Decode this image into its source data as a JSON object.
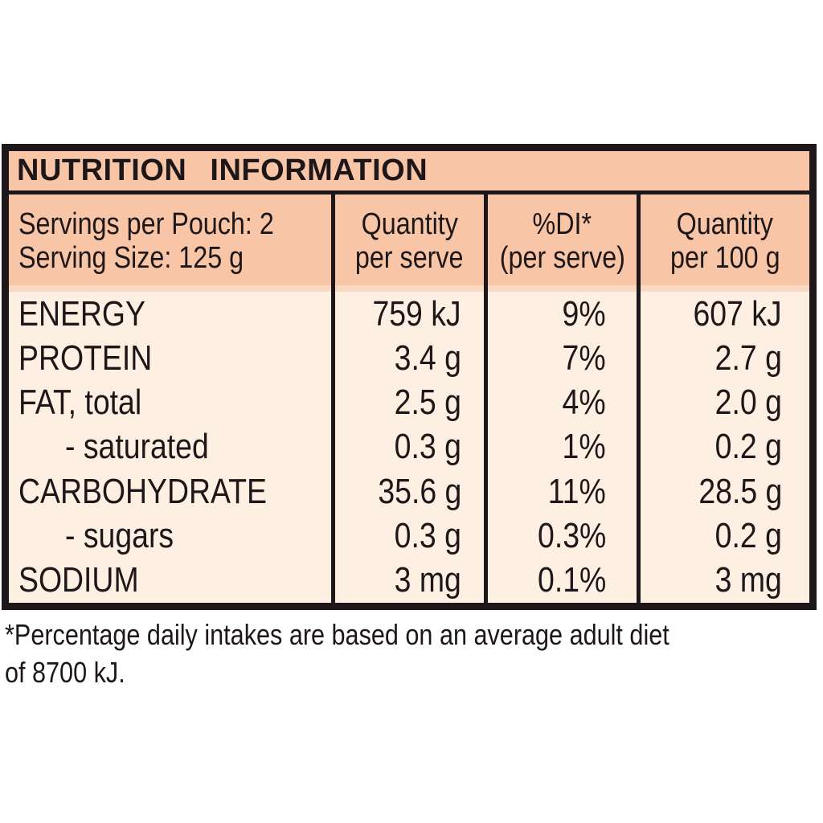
{
  "panel": {
    "title": "NUTRITION  INFORMATION",
    "colors": {
      "header_bg": "#f8c6a6",
      "body_bg": "#fdf0e2",
      "border_and_text": "#1d1719",
      "page_bg": "#ffffff"
    },
    "serving_info": {
      "line1": "Servings per Pouch: 2",
      "line2": "Serving Size: 125 g"
    },
    "columns": [
      {
        "line1": "Quantity",
        "line2": "per serve"
      },
      {
        "line1": "%DI*",
        "line2": "(per serve)"
      },
      {
        "line1": "Quantity",
        "line2": "per 100 g"
      }
    ],
    "rows": [
      {
        "nutrient": "ENERGY",
        "indent": false,
        "per_serve": "759 kJ",
        "di_percent": "9%",
        "per_100g": "607 kJ"
      },
      {
        "nutrient": "PROTEIN",
        "indent": false,
        "per_serve": "3.4 g",
        "di_percent": "7%",
        "per_100g": "2.7 g"
      },
      {
        "nutrient": "FAT, total",
        "indent": false,
        "per_serve": "2.5 g",
        "di_percent": "4%",
        "per_100g": "2.0 g"
      },
      {
        "nutrient": "- saturated",
        "indent": true,
        "per_serve": "0.3 g",
        "di_percent": "1%",
        "per_100g": "0.2 g"
      },
      {
        "nutrient": "CARBOHYDRATE",
        "indent": false,
        "per_serve": "35.6 g",
        "di_percent": "11%",
        "per_100g": "28.5 g"
      },
      {
        "nutrient": "- sugars",
        "indent": true,
        "per_serve": "0.3 g",
        "di_percent": "0.3%",
        "per_100g": "0.2 g"
      },
      {
        "nutrient": "SODIUM",
        "indent": false,
        "per_serve": "3 mg",
        "di_percent": "0.1%",
        "per_100g": "3 mg"
      }
    ]
  },
  "footnote": {
    "line1": "*Percentage daily intakes are based on an average adult diet",
    "line2": "of 8700 kJ."
  }
}
